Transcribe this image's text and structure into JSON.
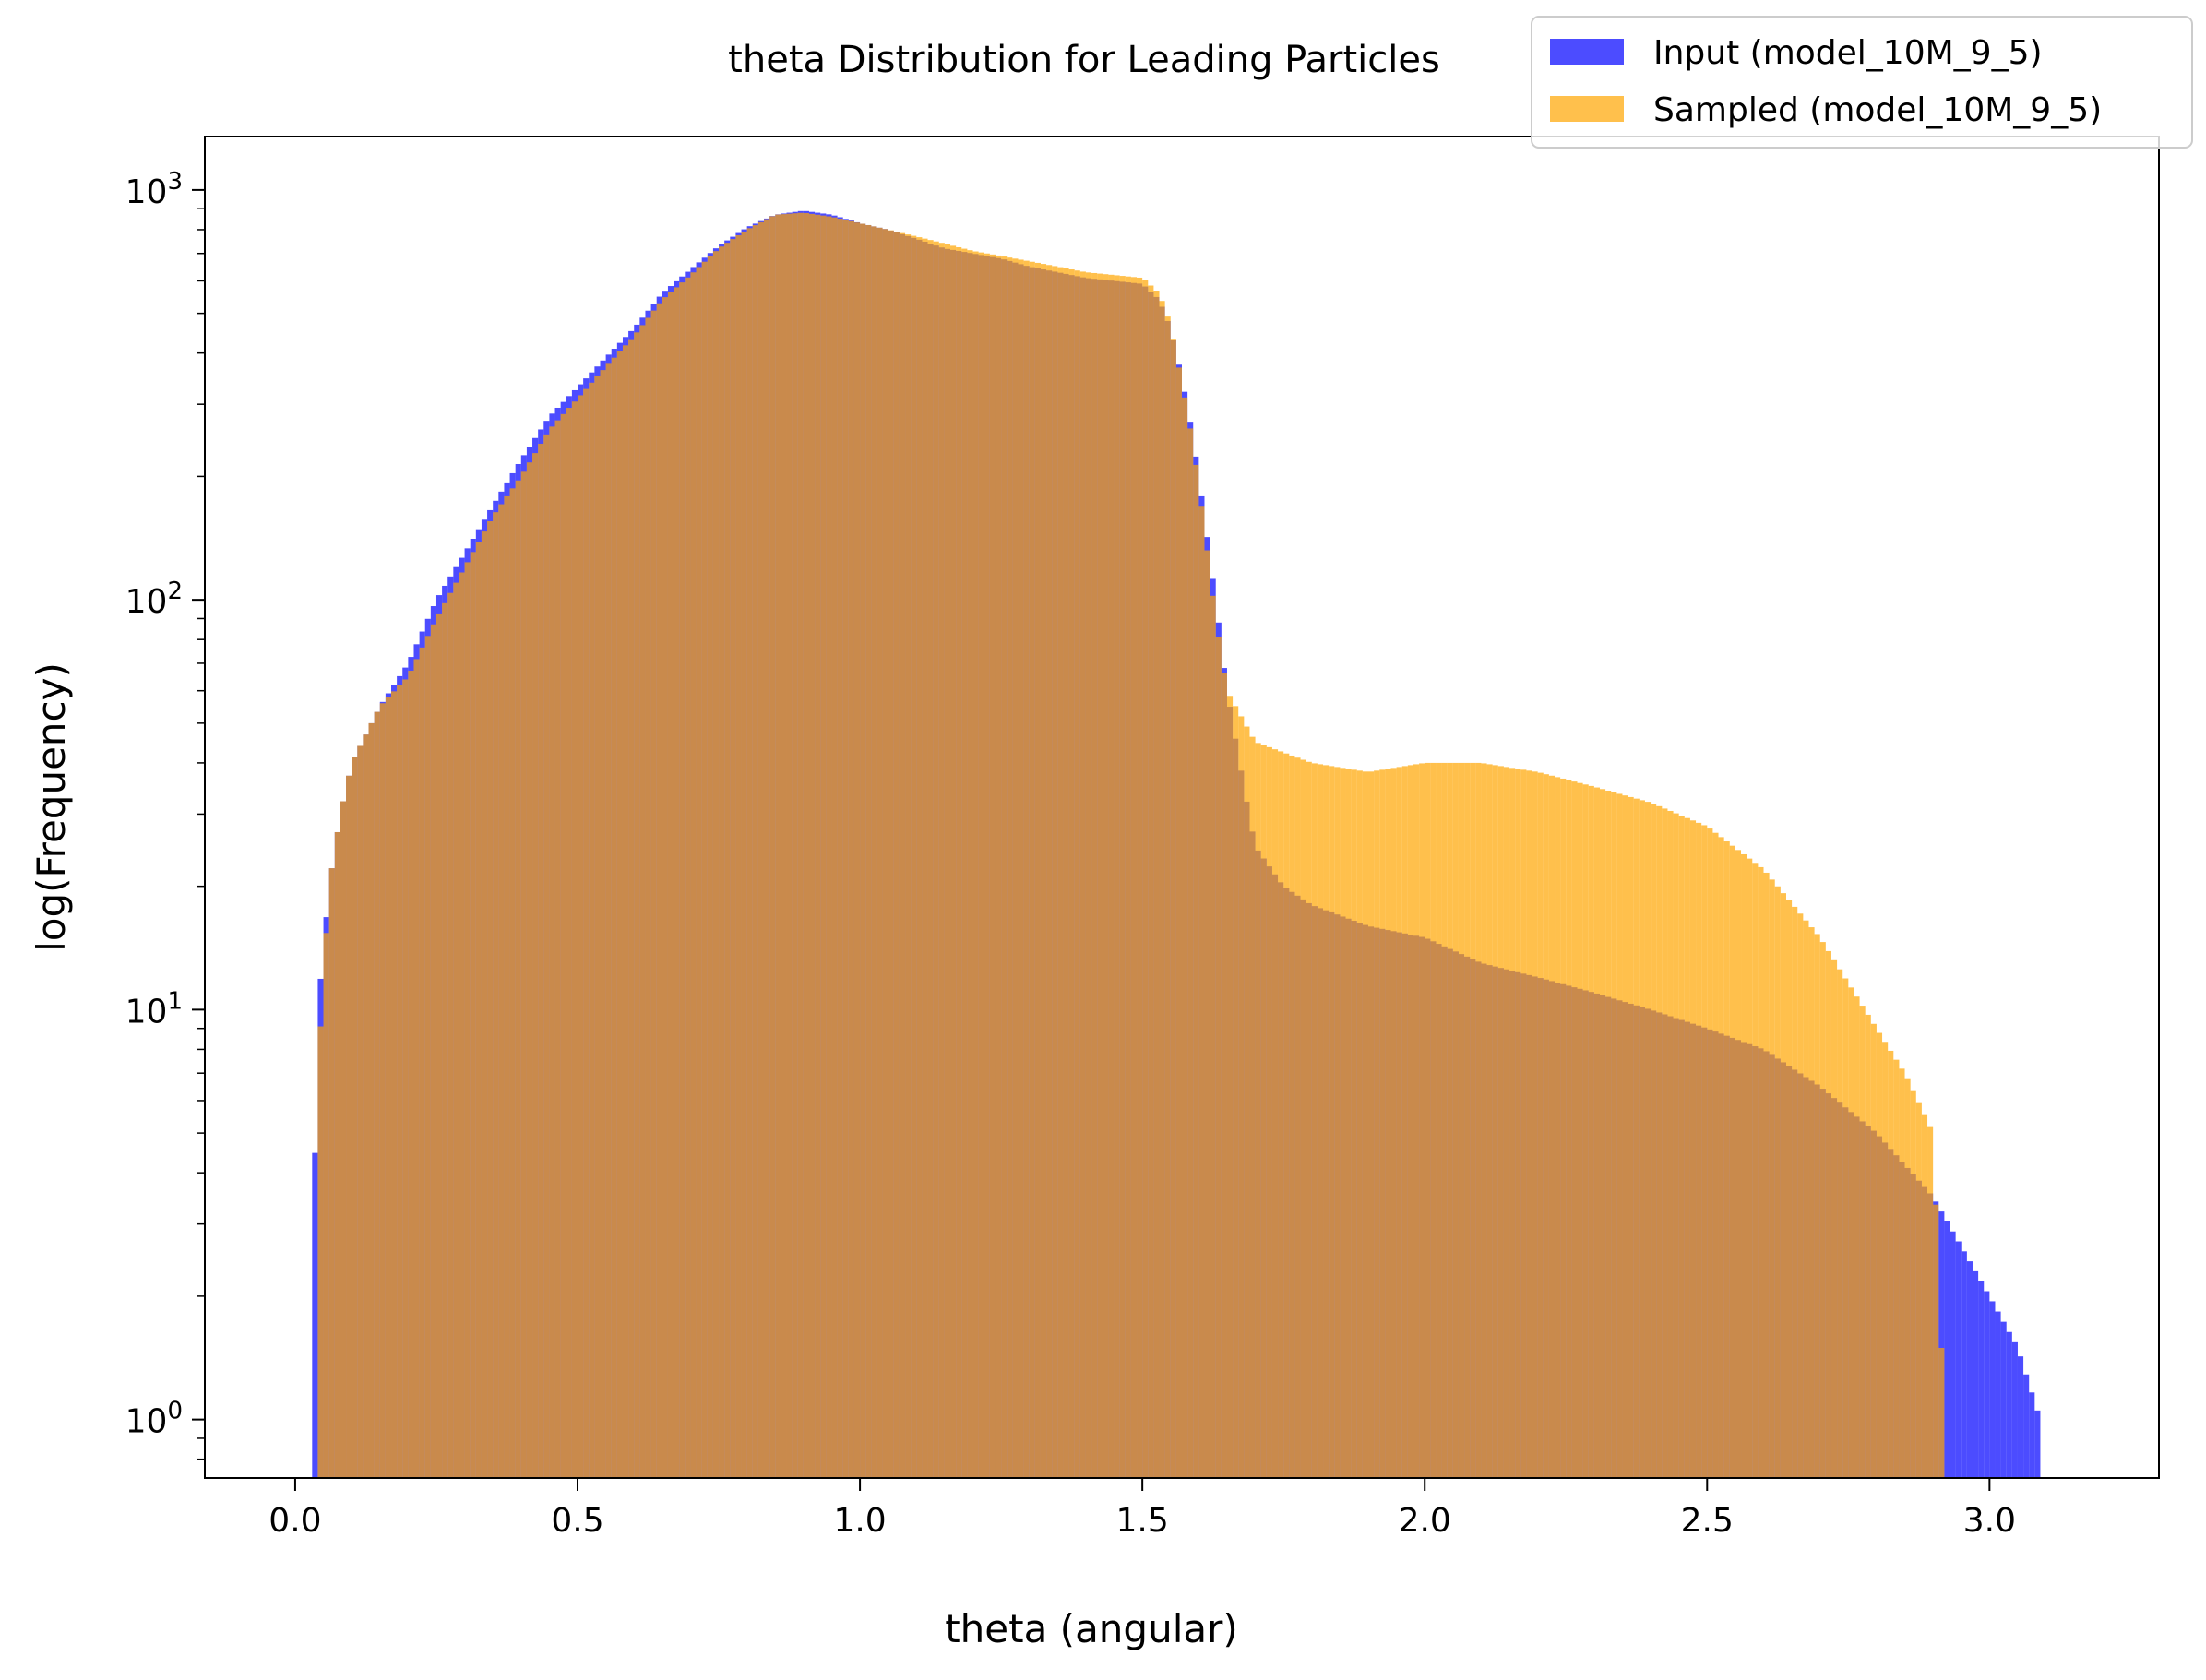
{
  "chart_data": {
    "type": "bar",
    "title": "theta Distribution for Leading Particles",
    "xlabel": "theta (angular)",
    "ylabel": "log(Frequency)",
    "xscale": "linear",
    "yscale": "log",
    "xlim": [
      -0.16,
      3.3
    ],
    "ylim": [
      0.72,
      1350
    ],
    "xticks": [
      {
        "value": 0.0,
        "label": "0.0"
      },
      {
        "value": 0.5,
        "label": "0.5"
      },
      {
        "value": 1.0,
        "label": "1.0"
      },
      {
        "value": 1.5,
        "label": "1.5"
      },
      {
        "value": 2.0,
        "label": "2.0"
      },
      {
        "value": 2.5,
        "label": "2.5"
      },
      {
        "value": 3.0,
        "label": "3.0"
      }
    ],
    "yticks": [
      {
        "value": 1,
        "label_base": "10",
        "label_exp": "0"
      },
      {
        "value": 10,
        "label_base": "10",
        "label_exp": "1"
      },
      {
        "value": 100,
        "label_base": "10",
        "label_exp": "2"
      },
      {
        "value": 1000,
        "label_base": "10",
        "label_exp": "3"
      }
    ],
    "grid": false,
    "legend_position": "top-right",
    "bin_width": 0.01,
    "series": [
      {
        "name": "Input (model_10M_9_5)",
        "color": "#0000ff",
        "opacity": 0.7,
        "points": [
          [
            0.03,
            2
          ],
          [
            0.04,
            10
          ],
          [
            0.06,
            20
          ],
          [
            0.08,
            30
          ],
          [
            0.1,
            40
          ],
          [
            0.15,
            55
          ],
          [
            0.2,
            70
          ],
          [
            0.25,
            100
          ],
          [
            0.3,
            130
          ],
          [
            0.35,
            170
          ],
          [
            0.4,
            220
          ],
          [
            0.45,
            280
          ],
          [
            0.5,
            330
          ],
          [
            0.55,
            390
          ],
          [
            0.6,
            460
          ],
          [
            0.65,
            560
          ],
          [
            0.7,
            640
          ],
          [
            0.75,
            730
          ],
          [
            0.8,
            810
          ],
          [
            0.85,
            870
          ],
          [
            0.9,
            890
          ],
          [
            0.95,
            870
          ],
          [
            1.0,
            830
          ],
          [
            1.05,
            800
          ],
          [
            1.1,
            760
          ],
          [
            1.15,
            720
          ],
          [
            1.2,
            700
          ],
          [
            1.25,
            680
          ],
          [
            1.3,
            650
          ],
          [
            1.35,
            630
          ],
          [
            1.4,
            610
          ],
          [
            1.45,
            600
          ],
          [
            1.5,
            590
          ],
          [
            1.53,
            540
          ],
          [
            1.55,
            460
          ],
          [
            1.57,
            350
          ],
          [
            1.59,
            250
          ],
          [
            1.61,
            160
          ],
          [
            1.63,
            100
          ],
          [
            1.65,
            60
          ],
          [
            1.68,
            35
          ],
          [
            1.7,
            25
          ],
          [
            1.75,
            20
          ],
          [
            1.8,
            18
          ],
          [
            1.9,
            16
          ],
          [
            2.0,
            15
          ],
          [
            2.1,
            13
          ],
          [
            2.2,
            12
          ],
          [
            2.3,
            11
          ],
          [
            2.4,
            10
          ],
          [
            2.5,
            9
          ],
          [
            2.6,
            8
          ],
          [
            2.7,
            6.5
          ],
          [
            2.8,
            5
          ],
          [
            2.9,
            3.5
          ],
          [
            3.0,
            2
          ],
          [
            3.05,
            1.5
          ],
          [
            3.09,
            1
          ]
        ]
      },
      {
        "name": "Sampled (model_10M_9_5)",
        "color": "#ffa500",
        "opacity": 0.7,
        "points": [
          [
            0.04,
            7
          ],
          [
            0.06,
            20
          ],
          [
            0.08,
            30
          ],
          [
            0.1,
            40
          ],
          [
            0.15,
            55
          ],
          [
            0.2,
            65
          ],
          [
            0.25,
            90
          ],
          [
            0.3,
            120
          ],
          [
            0.35,
            160
          ],
          [
            0.4,
            200
          ],
          [
            0.45,
            260
          ],
          [
            0.5,
            310
          ],
          [
            0.55,
            370
          ],
          [
            0.6,
            440
          ],
          [
            0.65,
            540
          ],
          [
            0.7,
            620
          ],
          [
            0.75,
            720
          ],
          [
            0.8,
            800
          ],
          [
            0.85,
            870
          ],
          [
            0.9,
            880
          ],
          [
            0.95,
            860
          ],
          [
            1.0,
            830
          ],
          [
            1.05,
            800
          ],
          [
            1.1,
            770
          ],
          [
            1.15,
            740
          ],
          [
            1.2,
            710
          ],
          [
            1.25,
            690
          ],
          [
            1.3,
            670
          ],
          [
            1.35,
            650
          ],
          [
            1.4,
            630
          ],
          [
            1.45,
            620
          ],
          [
            1.5,
            610
          ],
          [
            1.53,
            560
          ],
          [
            1.55,
            470
          ],
          [
            1.57,
            340
          ],
          [
            1.59,
            240
          ],
          [
            1.61,
            150
          ],
          [
            1.63,
            90
          ],
          [
            1.65,
            60
          ],
          [
            1.7,
            45
          ],
          [
            1.8,
            40
          ],
          [
            1.9,
            38
          ],
          [
            2.0,
            40
          ],
          [
            2.1,
            40
          ],
          [
            2.2,
            38
          ],
          [
            2.3,
            35
          ],
          [
            2.4,
            32
          ],
          [
            2.5,
            28
          ],
          [
            2.6,
            22
          ],
          [
            2.7,
            15
          ],
          [
            2.8,
            9
          ],
          [
            2.85,
            7
          ],
          [
            2.9,
            5
          ],
          [
            2.92,
            1
          ]
        ]
      }
    ]
  }
}
